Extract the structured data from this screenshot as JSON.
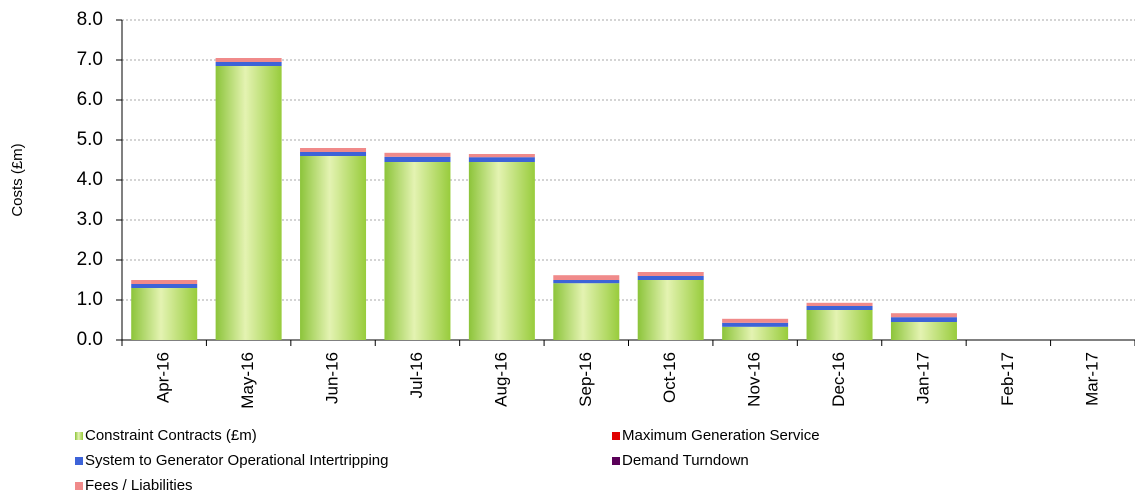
{
  "chart_data": {
    "type": "bar",
    "stacked": true,
    "y_label": "Costs (£m)",
    "categories": [
      "Apr-16",
      "May-16",
      "Jun-16",
      "Jul-16",
      "Aug-16",
      "Sep-16",
      "Oct-16",
      "Nov-16",
      "Dec-16",
      "Jan-17",
      "Feb-17",
      "Mar-17"
    ],
    "series": [
      {
        "name": "Constraint Contracts (£m)",
        "color": "#9ccc3c",
        "values": [
          1.3,
          6.85,
          4.6,
          4.45,
          4.45,
          1.42,
          1.5,
          0.33,
          0.75,
          0.45,
          null,
          null
        ]
      },
      {
        "name": "Maximum Generation Service",
        "color": "#e00000",
        "values": [
          0,
          0,
          0,
          0,
          0,
          0,
          0,
          0,
          0,
          0,
          null,
          null
        ]
      },
      {
        "name": "System to Generator Operational Intertripping",
        "color": "#3d63d8",
        "values": [
          0.1,
          0.1,
          0.1,
          0.13,
          0.12,
          0.08,
          0.1,
          0.1,
          0.1,
          0.12,
          null,
          null
        ]
      },
      {
        "name": "Demand Turndown",
        "color": "#5a0058",
        "values": [
          0,
          0,
          0,
          0,
          0,
          0,
          0,
          0,
          0,
          0,
          null,
          null
        ]
      },
      {
        "name": "Fees / Liabilities",
        "color": "#f08a8a",
        "values": [
          0.1,
          0.1,
          0.1,
          0.1,
          0.08,
          0.12,
          0.1,
          0.1,
          0.08,
          0.1,
          null,
          null
        ]
      }
    ],
    "ylim": [
      0,
      8
    ],
    "yticks": [
      {
        "value": 0,
        "label": "0.0"
      },
      {
        "value": 1,
        "label": "1.0"
      },
      {
        "value": 2,
        "label": "2.0"
      },
      {
        "value": 3,
        "label": "3.0"
      },
      {
        "value": 4,
        "label": "4.0"
      },
      {
        "value": 5,
        "label": "5.0"
      },
      {
        "value": 6,
        "label": "6.0"
      },
      {
        "value": 7,
        "label": "7.0"
      },
      {
        "value": 8,
        "label": "8.0"
      }
    ],
    "grid": true
  }
}
